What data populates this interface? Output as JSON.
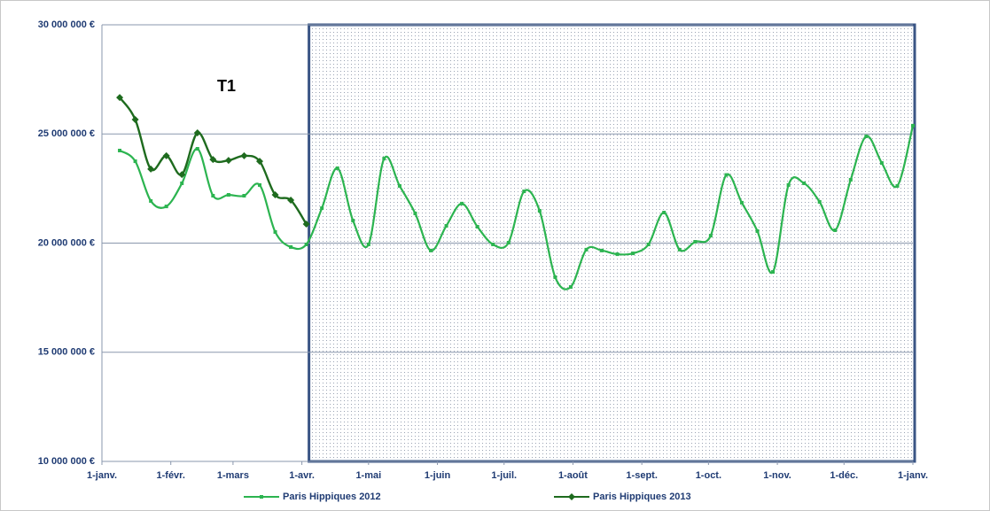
{
  "chart_data": {
    "type": "line",
    "annotation": "T1",
    "x": [
      8,
      15,
      22,
      29,
      36,
      43,
      50,
      57,
      64,
      71,
      78,
      85,
      92,
      99,
      106,
      113,
      120,
      127,
      134,
      141,
      148,
      155,
      162,
      169,
      176,
      183,
      190,
      197,
      204,
      211,
      218,
      225,
      232,
      239,
      246,
      253,
      260,
      267,
      274,
      281,
      288,
      295,
      302,
      309,
      316,
      323,
      330,
      337,
      344,
      351,
      358,
      365
    ],
    "series": [
      {
        "name": "Paris Hippiques 2012",
        "color": "#2cb450",
        "values": [
          24240000,
          23750000,
          21930000,
          21680000,
          22740000,
          24320000,
          22170000,
          22210000,
          22170000,
          22660000,
          20510000,
          19820000,
          19940000,
          21600000,
          23430000,
          21030000,
          19940000,
          23870000,
          22620000,
          21360000,
          19660000,
          20790000,
          21810000,
          20750000,
          19940000,
          20020000,
          22370000,
          21480000,
          18440000,
          17990000,
          19700000,
          19660000,
          19490000,
          19530000,
          19940000,
          21400000,
          19700000,
          20060000,
          20340000,
          23120000,
          21850000,
          20550000,
          18680000,
          22660000,
          22740000,
          21890000,
          20590000,
          22900000,
          24890000,
          23670000,
          22620000,
          25380000
        ]
      },
      {
        "name": "Paris Hippiques 2013",
        "color": "#1e6b1e",
        "values": [
          26670000,
          25660000,
          23390000,
          24000000,
          23140000,
          25050000,
          23830000,
          23790000,
          24000000,
          23750000,
          22210000,
          21970000,
          20870000,
          null,
          null,
          null,
          null,
          null,
          null,
          null,
          null,
          null,
          null,
          null,
          null,
          null,
          null,
          null,
          null,
          null,
          null,
          null,
          null,
          null,
          null,
          null,
          null,
          null,
          null,
          null,
          null,
          null,
          null,
          null,
          null,
          null,
          null,
          null,
          null,
          null,
          null,
          null
        ]
      }
    ],
    "xlim": [
      0,
      365
    ],
    "xticks": [
      {
        "value": 0,
        "label": "1-janv."
      },
      {
        "value": 31,
        "label": "1-févr."
      },
      {
        "value": 59,
        "label": "1-mars"
      },
      {
        "value": 90,
        "label": "1-avr."
      },
      {
        "value": 120,
        "label": "1-mai"
      },
      {
        "value": 151,
        "label": "1-juin"
      },
      {
        "value": 181,
        "label": "1-juil."
      },
      {
        "value": 212,
        "label": "1-août"
      },
      {
        "value": 243,
        "label": "1-sept."
      },
      {
        "value": 273,
        "label": "1-oct."
      },
      {
        "value": 304,
        "label": "1-nov."
      },
      {
        "value": 334,
        "label": "1-déc."
      },
      {
        "value": 365,
        "label": "1-janv."
      }
    ],
    "ylim": [
      10000000,
      30000000
    ],
    "yticks": [
      {
        "value": 10000000,
        "label": "10 000 000 €"
      },
      {
        "value": 15000000,
        "label": "15 000 000 €"
      },
      {
        "value": 20000000,
        "label": "20 000 000 €"
      },
      {
        "value": 25000000,
        "label": "25 000 000 €"
      },
      {
        "value": 30000000,
        "label": "30 000 000 €"
      }
    ],
    "grid": true,
    "legend": "bottom"
  }
}
